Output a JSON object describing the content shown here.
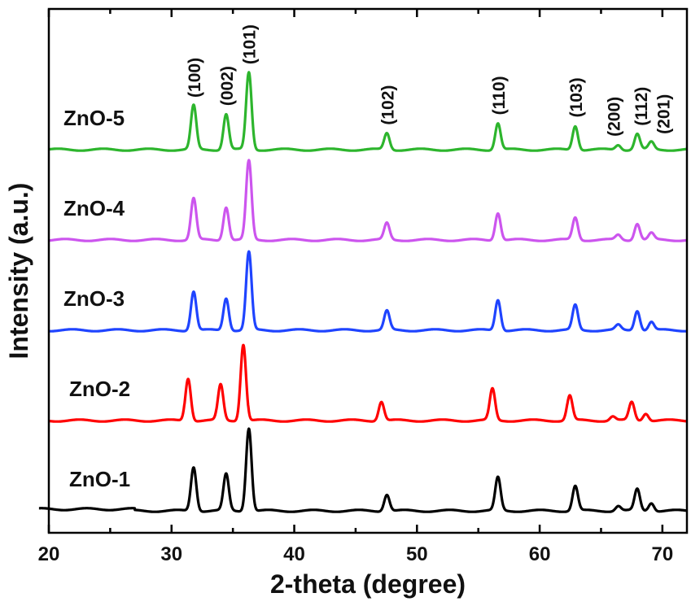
{
  "chart_data": {
    "type": "line",
    "title": "",
    "xlabel": "2-theta (degree)",
    "ylabel": "Intensity (a.u.)",
    "xlim": [
      20,
      72
    ],
    "x_ticks": [
      20,
      30,
      40,
      50,
      60,
      70
    ],
    "y_ticks_shown": false,
    "grid": false,
    "legend": "none (series labeled inline at left)",
    "series": [
      {
        "name": "ZnO-1",
        "color": "#000000",
        "baseline_level": 0.0,
        "shift": 0.0,
        "peaks": [
          [
            31.8,
            0.53
          ],
          [
            34.45,
            0.44
          ],
          [
            36.3,
            1.0
          ],
          [
            47.55,
            0.2
          ],
          [
            56.6,
            0.4
          ],
          [
            62.9,
            0.3
          ],
          [
            66.4,
            0.06
          ],
          [
            67.95,
            0.26
          ],
          [
            69.1,
            0.1
          ]
        ]
      },
      {
        "name": "ZnO-2",
        "color": "#ff0000",
        "baseline_level": 1.0,
        "shift": -0.45,
        "peaks": [
          [
            31.8,
            0.51
          ],
          [
            34.45,
            0.43
          ],
          [
            36.3,
            0.92
          ],
          [
            47.55,
            0.23
          ],
          [
            56.6,
            0.38
          ],
          [
            62.9,
            0.3
          ],
          [
            66.4,
            0.05
          ],
          [
            67.95,
            0.22
          ],
          [
            69.1,
            0.09
          ]
        ]
      },
      {
        "name": "ZnO-3",
        "color": "#1f44ff",
        "baseline_level": 2.0,
        "shift": 0.0,
        "peaks": [
          [
            31.8,
            0.47
          ],
          [
            34.45,
            0.39
          ],
          [
            36.3,
            0.94
          ],
          [
            47.55,
            0.23
          ],
          [
            56.6,
            0.37
          ],
          [
            62.9,
            0.3
          ],
          [
            66.4,
            0.06
          ],
          [
            67.95,
            0.24
          ],
          [
            69.1,
            0.1
          ]
        ]
      },
      {
        "name": "ZnO-4",
        "color": "#cc55ee",
        "baseline_level": 3.0,
        "shift": 0.0,
        "peaks": [
          [
            31.8,
            0.5
          ],
          [
            34.45,
            0.4
          ],
          [
            36.3,
            0.95
          ],
          [
            47.55,
            0.2
          ],
          [
            56.6,
            0.33
          ],
          [
            62.9,
            0.27
          ],
          [
            66.4,
            0.06
          ],
          [
            67.95,
            0.2
          ],
          [
            69.1,
            0.08
          ]
        ]
      },
      {
        "name": "ZnO-5",
        "color": "#2db52d",
        "baseline_level": 4.0,
        "shift": 0.0,
        "peaks": [
          [
            31.8,
            0.53
          ],
          [
            34.45,
            0.43
          ],
          [
            36.3,
            0.93
          ],
          [
            47.55,
            0.2
          ],
          [
            56.6,
            0.32
          ],
          [
            62.9,
            0.29
          ],
          [
            66.4,
            0.06
          ],
          [
            67.95,
            0.19
          ],
          [
            69.1,
            0.09
          ]
        ]
      }
    ],
    "annotations": [
      {
        "text": "(100)",
        "x": 31.8
      },
      {
        "text": "(002)",
        "x": 34.45
      },
      {
        "text": "(101)",
        "x": 36.3
      },
      {
        "text": "(102)",
        "x": 47.55
      },
      {
        "text": "(110)",
        "x": 56.6
      },
      {
        "text": "(103)",
        "x": 62.9
      },
      {
        "text": "(200)",
        "x": 66.4
      },
      {
        "text": "(112)",
        "x": 67.95
      },
      {
        "text": "(201)",
        "x": 69.1
      }
    ]
  }
}
